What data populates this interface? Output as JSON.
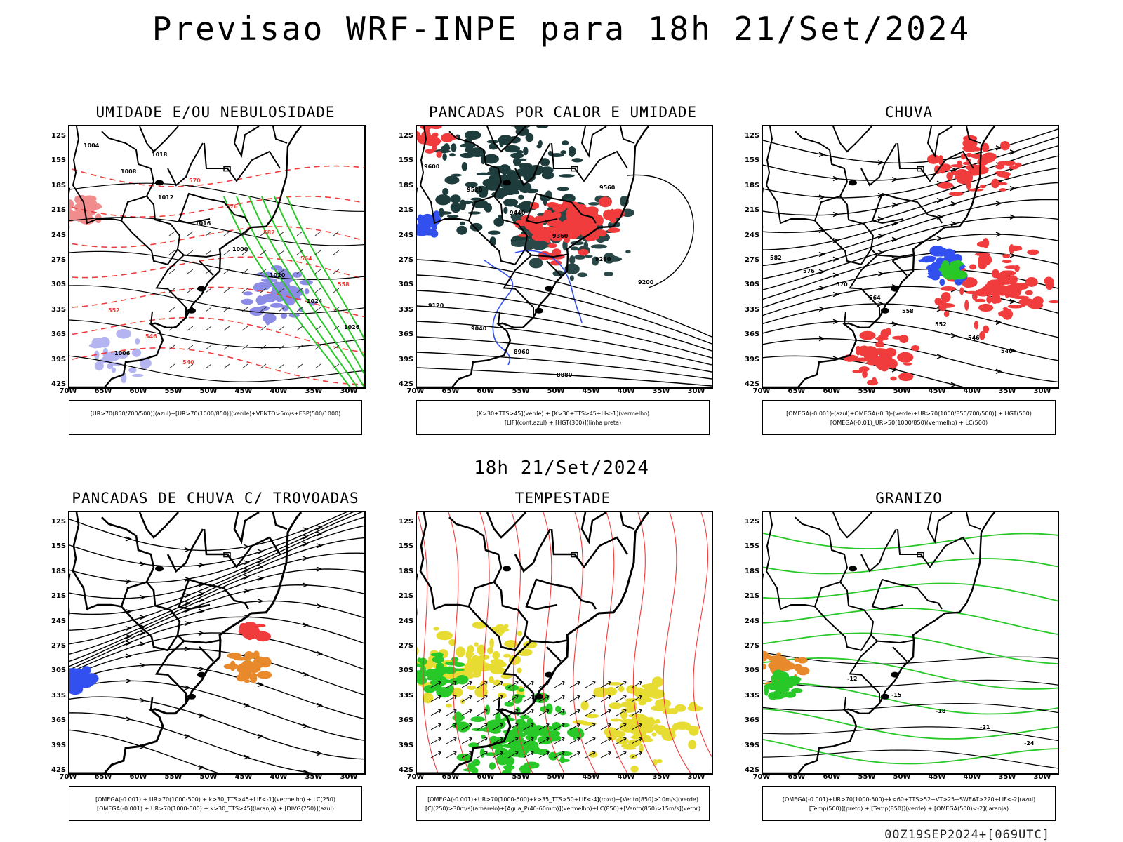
{
  "title": "Previsao WRF-INPE  para 18h 21/Set/2024",
  "mid_title": "18h 21/Set/2024",
  "footer": "00Z19SEP2024+[069UTC]",
  "lat_labels": [
    "12S",
    "15S",
    "18S",
    "21S",
    "24S",
    "27S",
    "30S",
    "33S",
    "36S",
    "39S",
    "42S"
  ],
  "lon_labels": [
    "70W",
    "65W",
    "60W",
    "55W",
    "50W",
    "45W",
    "40W",
    "35W",
    "30W"
  ],
  "panels": [
    {
      "id": "umidade",
      "title": "UMIDADE E/OU NEBULOSIDADE",
      "legend": [
        "[UR>70(850/700/500)](azul)+[UR>70(1000/850)](verde)+VENTO>5m/s+ESP(500/1000)"
      ],
      "contour_labels": [
        "1004",
        "1008",
        "1012",
        "1016",
        "1000",
        "1020",
        "1024",
        "1026",
        "1006",
        "1018",
        "570",
        "576",
        "582",
        "564",
        "558",
        "552",
        "546",
        "540"
      ]
    },
    {
      "id": "pancadas_calor",
      "title": "PANCADAS POR CALOR E UMIDADE",
      "legend": [
        "[K>30+TTS>45](verde) + [K>30+TTS>45+LI<-1](vermelho)",
        "[LIF](cont.azul) + [HGT(300)](linha preta)"
      ],
      "contour_labels": [
        "9600",
        "9520",
        "9440",
        "9360",
        "9280",
        "9200",
        "9120",
        "9040",
        "8960",
        "8880",
        "9560"
      ]
    },
    {
      "id": "chuva",
      "title": "CHUVA",
      "legend": [
        "[OMEGA(-0.001)-(azul)+OMEGA(-0.3)-(verde)+UR>70(1000/850/700/500)] + HGT(500)",
        "[OMEGA(-0.01)_UR>50(1000/850)(vermelho) + LC(500)"
      ],
      "contour_labels": [
        "582",
        "576",
        "570",
        "564",
        "558",
        "552",
        "546",
        "540"
      ]
    },
    {
      "id": "trovoadas",
      "title": "PANCADAS DE CHUVA C/ TROVOADAS",
      "legend": [
        "[OMEGA(-0.001) + UR>70(1000-500) + k>30_TTS>45+LIF<-1](vermelho) + LC(250)",
        "[OMEGA(-0.001) + UR>70(1000-500) + k>30_TTS>45](laranja) + [DIVG(250)](azul)"
      ],
      "contour_labels": []
    },
    {
      "id": "tempestade",
      "title": "TEMPESTADE",
      "legend": [
        "[OMEGA(-0.001)+UR>70(1000-500)+k>35_TTS>50+LIF<-4](roxo)+[Vento(850)>10m/s](verde)",
        "[CJ(250)>30m/s](amarelo)+[Agua_P(40-60mm)](vermelho)+LC(850)+[Vento(850)>15m/s](vetor)"
      ],
      "contour_labels": []
    },
    {
      "id": "granizo",
      "title": "GRANIZO",
      "legend": [
        "[OMEGA(-0.001)+UR>70(1000-500)+k<60+TTS>52+VT>25+SWEAT>220+LIF<-2](azul)",
        "[Temp(500)](preto) + [Temp(850)](verde) + [OMEGA(500)<-2](laranja)"
      ],
      "contour_labels": [
        "-12",
        "-15",
        "-18",
        "-21",
        "-24"
      ]
    }
  ],
  "colors": {
    "red": "#f03c3c",
    "blue": "#3250f0",
    "green": "#28c828",
    "darkteal": "#1e3c3c",
    "yellow": "#e6dc32",
    "orange": "#e88a2c",
    "lavender": "#b4b4f0"
  }
}
